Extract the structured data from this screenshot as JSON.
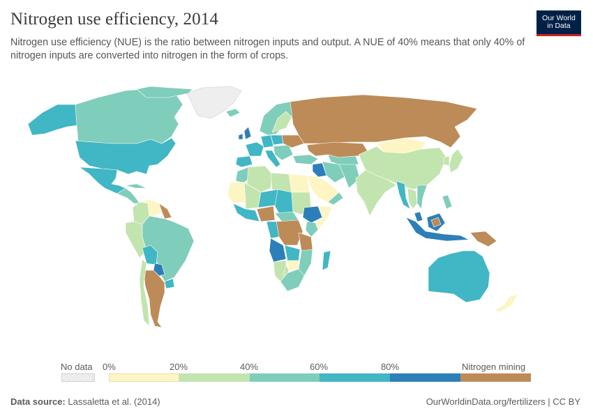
{
  "title": "Nitrogen use efficiency, 2014",
  "subtitle": "Nitrogen use efficiency (NUE) is the ratio between nitrogen inputs and output. A NUE of 40% means that only 40% of nitrogen inputs are converted into nitrogen in the form of crops.",
  "logo": {
    "line1": "Our World",
    "line2": "in Data"
  },
  "legend": {
    "no_data_label": "No data",
    "ticks": [
      "0%",
      "20%",
      "40%",
      "60%",
      "80%"
    ],
    "mining_label": "Nitrogen mining",
    "colors": {
      "0-20": "#fdf5c3",
      "20-40": "#c2e4ae",
      "40-60": "#7fcdbb",
      "60-80": "#41b6c4",
      "80-100": "#2c7fb8",
      "mining": "#bd8b57",
      "no_data": "#eeeeee",
      "ocean": "#ffffff",
      "border": "#ffffff"
    }
  },
  "footer": {
    "source_label": "Data source:",
    "source_value": "Lassaletta et al. (2014)",
    "url": "OurWorldinData.org/fertilizers | CC BY"
  },
  "chart_data": {
    "type": "choropleth",
    "year": 2014,
    "unit": "%",
    "bins": [
      {
        "range": "0-20%",
        "color": "#fdf5c3"
      },
      {
        "range": "20-40%",
        "color": "#c2e4ae"
      },
      {
        "range": "40-60%",
        "color": "#7fcdbb"
      },
      {
        "range": "60-80%",
        "color": "#41b6c4"
      },
      {
        "range": "80-100%",
        "color": "#2c7fb8"
      },
      {
        "range": "Nitrogen mining",
        "color": "#bd8b57"
      }
    ],
    "regions": [
      {
        "region": "Canada",
        "bin": "40-60%"
      },
      {
        "region": "United States",
        "bin": "60-80%"
      },
      {
        "region": "Alaska",
        "bin": "60-80%"
      },
      {
        "region": "Mexico",
        "bin": "60-80%"
      },
      {
        "region": "Central America",
        "bin": "40-60%"
      },
      {
        "region": "Greenland",
        "bin": "no data"
      },
      {
        "region": "Venezuela",
        "bin": "0-20%"
      },
      {
        "region": "Colombia",
        "bin": "20-40%"
      },
      {
        "region": "Ecuador",
        "bin": "20-40%"
      },
      {
        "region": "Guyana",
        "bin": "mining"
      },
      {
        "region": "Brazil",
        "bin": "40-60%"
      },
      {
        "region": "Peru",
        "bin": "20-40%"
      },
      {
        "region": "Bolivia",
        "bin": "60-80%"
      },
      {
        "region": "Paraguay",
        "bin": "80-100%"
      },
      {
        "region": "Uruguay",
        "bin": "60-80%"
      },
      {
        "region": "Argentina",
        "bin": "mining"
      },
      {
        "region": "Chile",
        "bin": "20-40%"
      },
      {
        "region": "Iceland",
        "bin": "40-60%"
      },
      {
        "region": "Norway",
        "bin": "40-60%"
      },
      {
        "region": "Sweden",
        "bin": "20-40%"
      },
      {
        "region": "Finland",
        "bin": "40-60%"
      },
      {
        "region": "Ireland",
        "bin": "80-100%"
      },
      {
        "region": "United Kingdom",
        "bin": "80-100%"
      },
      {
        "region": "France",
        "bin": "60-80%"
      },
      {
        "region": "Spain",
        "bin": "60-80%"
      },
      {
        "region": "Germany",
        "bin": "60-80%"
      },
      {
        "region": "Poland",
        "bin": "60-80%"
      },
      {
        "region": "Italy",
        "bin": "60-80%"
      },
      {
        "region": "Ukraine",
        "bin": "mining"
      },
      {
        "region": "Russia",
        "bin": "mining"
      },
      {
        "region": "Kazakhstan",
        "bin": "mining"
      },
      {
        "region": "Mongolia",
        "bin": "0-20%"
      },
      {
        "region": "China",
        "bin": "20-40%"
      },
      {
        "region": "Japan",
        "bin": "20-40%"
      },
      {
        "region": "Turkey",
        "bin": "40-60%"
      },
      {
        "region": "Iraq",
        "bin": "80-100%"
      },
      {
        "region": "Iran",
        "bin": "40-60%"
      },
      {
        "region": "Saudi Arabia",
        "bin": "0-20%"
      },
      {
        "region": "Afghanistan",
        "bin": "40-60%"
      },
      {
        "region": "Pakistan",
        "bin": "40-60%"
      },
      {
        "region": "India",
        "bin": "20-40%"
      },
      {
        "region": "Myanmar",
        "bin": "60-80%"
      },
      {
        "region": "Thailand",
        "bin": "20-40%"
      },
      {
        "region": "Vietnam",
        "bin": "40-60%"
      },
      {
        "region": "Malaysia",
        "bin": "80-100%"
      },
      {
        "region": "Indonesia",
        "bin": "80-100%"
      },
      {
        "region": "Papua New Guinea",
        "bin": "mining"
      },
      {
        "region": "Philippines",
        "bin": "40-60%"
      },
      {
        "region": "Australia",
        "bin": "60-80%"
      },
      {
        "region": "New Zealand",
        "bin": "0-20%"
      },
      {
        "region": "Morocco",
        "bin": "40-60%"
      },
      {
        "region": "Algeria",
        "bin": "20-40%"
      },
      {
        "region": "Libya",
        "bin": "20-40%"
      },
      {
        "region": "Egypt",
        "bin": "0-20%"
      },
      {
        "region": "Mauritania",
        "bin": "0-20%"
      },
      {
        "region": "Mali",
        "bin": "20-40%"
      },
      {
        "region": "Niger",
        "bin": "60-80%"
      },
      {
        "region": "Chad",
        "bin": "60-80%"
      },
      {
        "region": "Sudan",
        "bin": "20-40%"
      },
      {
        "region": "Nigeria",
        "bin": "mining"
      },
      {
        "region": "Ethiopia",
        "bin": "80-100%"
      },
      {
        "region": "Somalia",
        "bin": "0-20%"
      },
      {
        "region": "Kenya",
        "bin": "40-60%"
      },
      {
        "region": "DR Congo",
        "bin": "mining"
      },
      {
        "region": "Tanzania",
        "bin": "mining"
      },
      {
        "region": "Angola",
        "bin": "60-80%"
      },
      {
        "region": "Zambia",
        "bin": "60-80%"
      },
      {
        "region": "Mozambique",
        "bin": "40-60%"
      },
      {
        "region": "Zimbabwe",
        "bin": "0-20%"
      },
      {
        "region": "Botswana",
        "bin": "20-40%"
      },
      {
        "region": "Namibia",
        "bin": "20-40%"
      },
      {
        "region": "South Africa",
        "bin": "40-60%"
      },
      {
        "region": "Madagascar",
        "bin": "60-80%"
      }
    ]
  }
}
